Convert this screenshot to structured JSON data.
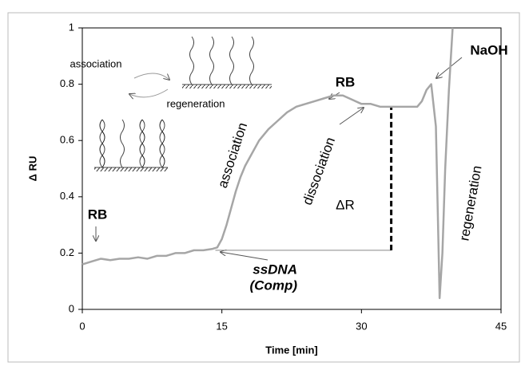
{
  "chart_data": {
    "type": "line",
    "x_label": "Time [min]",
    "y_label": "Δ RU",
    "x": [
      0,
      1,
      2,
      3,
      4,
      5,
      6,
      7,
      8,
      9,
      10,
      11,
      12,
      13,
      14,
      14.5,
      15,
      15.5,
      16,
      16.5,
      17,
      17.5,
      18,
      19,
      20,
      21,
      22,
      23,
      24,
      25,
      26,
      27,
      28,
      29,
      30,
      31,
      32,
      33,
      34,
      35,
      36,
      36.5,
      37,
      37.5,
      38,
      38.2,
      38.4,
      38.7,
      39,
      39.4,
      39.8
    ],
    "series": [
      {
        "color": "#a6a6a6",
        "values": [
          0.16,
          0.17,
          0.18,
          0.175,
          0.18,
          0.18,
          0.185,
          0.18,
          0.19,
          0.19,
          0.2,
          0.2,
          0.21,
          0.21,
          0.215,
          0.22,
          0.25,
          0.3,
          0.36,
          0.42,
          0.47,
          0.51,
          0.54,
          0.6,
          0.64,
          0.67,
          0.7,
          0.72,
          0.73,
          0.74,
          0.75,
          0.76,
          0.76,
          0.745,
          0.73,
          0.73,
          0.72,
          0.72,
          0.72,
          0.72,
          0.72,
          0.74,
          0.78,
          0.8,
          0.65,
          0.35,
          0.04,
          0.2,
          0.5,
          0.78,
          1
        ]
      }
    ],
    "baseline": {
      "x": [
        14.3,
        33.2
      ],
      "y": 0.21
    },
    "delta_r": {
      "x": 33.2,
      "y": [
        0.21,
        0.72
      ]
    },
    "xlim": [
      0,
      45
    ],
    "xticks": [
      0,
      15,
      30,
      45
    ],
    "ylim": [
      0,
      1
    ],
    "yticks": [
      0,
      0.2,
      0.4,
      0.6,
      0.8,
      1
    ],
    "annotations": [
      "association",
      "regeneration",
      "RB",
      "NaOH",
      "association",
      "dissociation",
      "ΔR",
      "regeneration",
      "RB",
      "ssDNA",
      "(Comp)"
    ]
  }
}
